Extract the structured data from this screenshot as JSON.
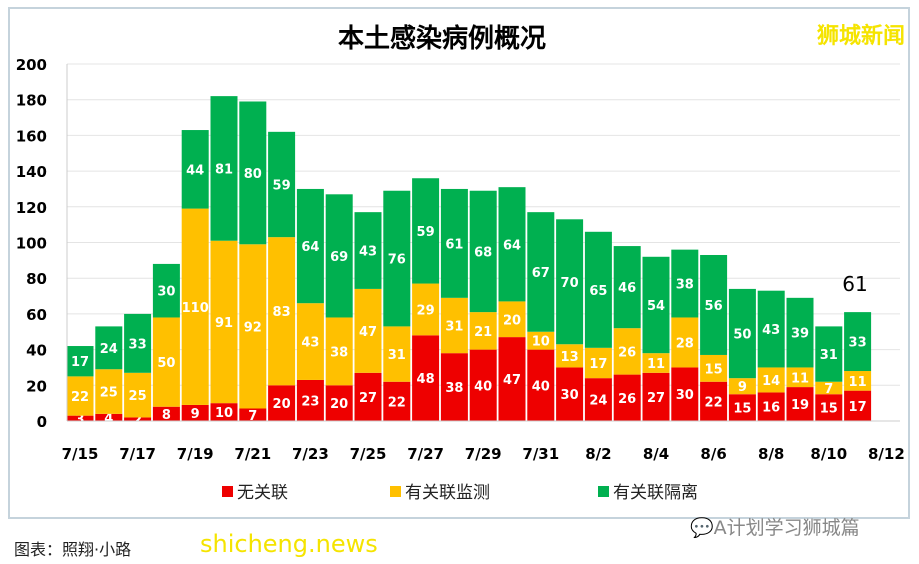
{
  "watermark_top": "狮城新闻",
  "watermark_bottom": "shicheng.news",
  "wechat_source": "A计划学习狮城篇",
  "caption": "图表：照翔·小路",
  "colors": {
    "red": "#ee0000",
    "yellow": "#ffc000",
    "green": "#00b050"
  },
  "chart_data": {
    "type": "bar",
    "stacked": true,
    "title": "本土感染病例概况",
    "categories": [
      "7/15",
      "7/16",
      "7/17",
      "7/18",
      "7/19",
      "7/20",
      "7/21",
      "7/22",
      "7/23",
      "7/24",
      "7/25",
      "7/26",
      "7/27",
      "7/28",
      "7/29",
      "7/30",
      "7/31",
      "8/1",
      "8/2",
      "8/3",
      "8/4",
      "8/5",
      "8/6",
      "8/7",
      "8/8",
      "8/9",
      "8/10",
      "8/11"
    ],
    "xticks": [
      "7/15",
      "7/17",
      "7/19",
      "7/21",
      "7/23",
      "7/25",
      "7/27",
      "7/29",
      "7/31",
      "8/2",
      "8/4",
      "8/6",
      "8/8",
      "8/10",
      "8/12"
    ],
    "yticks": [
      0,
      20,
      40,
      60,
      80,
      100,
      120,
      140,
      160,
      180,
      200
    ],
    "ylim": [
      0,
      200
    ],
    "series": [
      {
        "name": "无关联",
        "color": "#ee0000",
        "values": [
          3,
          4,
          2,
          8,
          9,
          10,
          7,
          20,
          23,
          20,
          27,
          22,
          48,
          38,
          40,
          47,
          40,
          30,
          24,
          26,
          27,
          30,
          22,
          15,
          16,
          19,
          15,
          17
        ]
      },
      {
        "name": "有关联监测",
        "color": "#ffc000",
        "values": [
          22,
          25,
          25,
          50,
          110,
          91,
          92,
          83,
          43,
          38,
          47,
          31,
          29,
          31,
          21,
          20,
          10,
          13,
          17,
          26,
          11,
          28,
          15,
          9,
          14,
          11,
          7,
          11
        ]
      },
      {
        "name": "有关联隔离",
        "color": "#00b050",
        "values": [
          17,
          24,
          33,
          30,
          44,
          81,
          80,
          59,
          64,
          69,
          43,
          76,
          59,
          61,
          68,
          64,
          67,
          70,
          65,
          46,
          54,
          38,
          56,
          50,
          43,
          39,
          31,
          33
        ]
      }
    ],
    "annotation": "61",
    "legend": "bottom",
    "grid": true
  }
}
